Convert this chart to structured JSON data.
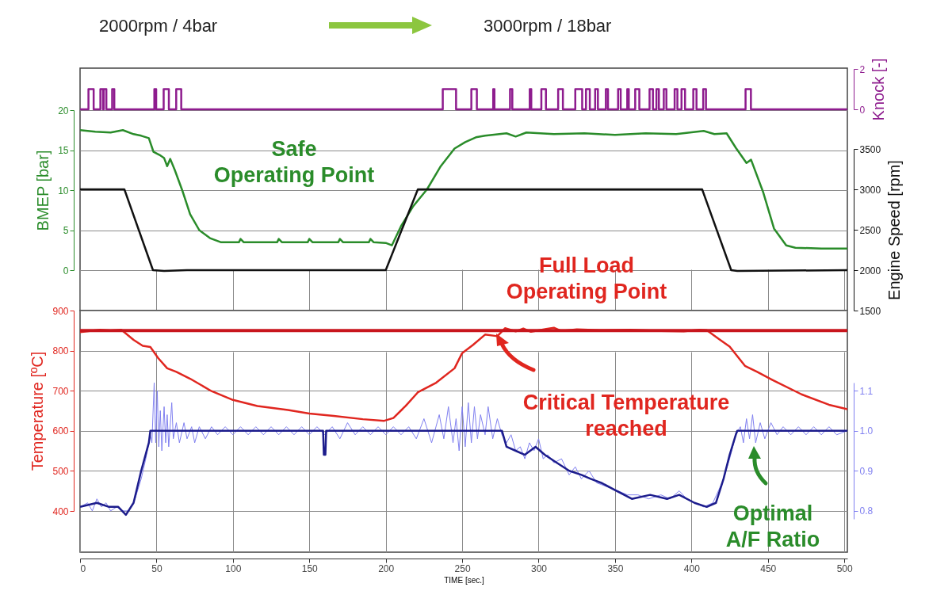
{
  "chart_data": [
    {
      "type": "line",
      "ylabel": "BMEP [bar]",
      "y2label": "Engine Speed [rpm]",
      "y3label": "Knock [-]",
      "xlim": [
        0,
        502
      ],
      "xticks": [
        0,
        50,
        100,
        150,
        200,
        250,
        300,
        350,
        400,
        450,
        500
      ],
      "tick_labels": "y",
      "ylim": [
        0,
        20
      ],
      "yticks": [
        0,
        5,
        10,
        15,
        20
      ],
      "y2lim": [
        1500,
        3500
      ],
      "y2ticks": [
        1500,
        2000,
        2500,
        3000,
        3500
      ],
      "y3lim": [
        0,
        2
      ],
      "y3ticks": [
        0,
        2
      ],
      "grid": true,
      "series": [
        {
          "type": "step",
          "axis": "y3",
          "color": "#8e1c8e",
          "x": [
            0,
            5.5,
            8.9,
            13.3,
            15,
            15.5,
            17.2,
            21,
            22.4,
            48.6,
            49.8,
            54.7,
            58.1,
            62.9,
            66.2,
            237.3,
            246,
            256,
            259.6,
            270.3,
            271.1,
            281.3,
            282.8,
            294.2,
            295.2,
            301.8,
            304.8,
            312.8,
            315.9,
            324,
            328.5,
            331,
            333.5,
            337,
            338.8,
            344,
            345.4,
            352,
            353.7,
            358,
            359,
            363.2,
            365.9,
            372.6,
            374.8,
            377.1,
            378.7,
            381.9,
            383.6,
            389,
            390.8,
            393.5,
            395.8,
            401.2,
            403.3,
            407.7,
            409.5,
            435.4,
            438.9,
            502
          ],
          "values": [
            0,
            1,
            0,
            1,
            0,
            1,
            0,
            1,
            0,
            1,
            0,
            1,
            0,
            1,
            0,
            1,
            0,
            1,
            0,
            1,
            0,
            1,
            0,
            1,
            0,
            1,
            0,
            1,
            0,
            1,
            0,
            1,
            0,
            1,
            0,
            1,
            0,
            1,
            0,
            1,
            0,
            1,
            0,
            1,
            0,
            1,
            0,
            1,
            0,
            1,
            0,
            1,
            0,
            1,
            0,
            1,
            0,
            1,
            0,
            0
          ]
        },
        {
          "color": "#2a8c2a",
          "x": [
            0,
            10,
            20,
            28,
            35,
            40,
            45,
            48,
            52,
            55,
            57,
            59,
            62,
            67,
            72,
            78,
            85,
            92,
            104,
            105,
            107,
            129,
            130,
            132,
            149,
            150,
            152,
            169,
            170,
            172,
            189,
            190,
            192,
            200,
            204,
            210,
            218,
            227,
            236,
            245,
            252,
            259,
            265,
            279,
            285,
            292,
            310,
            330,
            350,
            370,
            390,
            408,
            415,
            423,
            429,
            436,
            439,
            447,
            454,
            462,
            468,
            485,
            502
          ],
          "values": [
            17.5,
            17.3,
            17.2,
            17.5,
            17.0,
            16.8,
            16.5,
            14.8,
            14.4,
            14.0,
            13.0,
            13.9,
            12.5,
            9.9,
            7.0,
            5.0,
            4.0,
            3.5,
            3.5,
            3.9,
            3.5,
            3.5,
            3.9,
            3.5,
            3.5,
            3.9,
            3.5,
            3.5,
            3.9,
            3.5,
            3.5,
            3.9,
            3.5,
            3.4,
            3.1,
            5.5,
            8.0,
            10.1,
            13.0,
            15.2,
            16.0,
            16.6,
            16.8,
            17.1,
            16.7,
            17.2,
            17.0,
            17.1,
            16.9,
            17.1,
            17.0,
            17.4,
            17.0,
            17.1,
            15.3,
            13.4,
            13.8,
            9.7,
            5.2,
            3.1,
            2.8,
            2.7,
            2.7
          ]
        },
        {
          "axis": "y2",
          "color": "#111111",
          "x": [
            0,
            29,
            47.7,
            55,
            70,
            200,
            221,
            300,
            407,
            426,
            430,
            502
          ],
          "values": [
            3000,
            3000,
            2000,
            1990,
            2000,
            2000,
            3000,
            3000,
            3000,
            2000,
            1990,
            2000
          ]
        }
      ],
      "annotations": [
        "2000rpm / 4bar",
        "3000rpm / 18bar",
        "Safe\nOperating Point",
        "Full Load\nOperating Point"
      ]
    },
    {
      "type": "line",
      "xlabel": "TIME [sec.]",
      "ylabel": "Temperature [ºC]",
      "xlim": [
        0,
        502
      ],
      "xticks": [
        0,
        50,
        100,
        150,
        200,
        250,
        300,
        350,
        400,
        450,
        500
      ],
      "ylim": [
        400,
        900
      ],
      "yticks": [
        400,
        500,
        600,
        700,
        800,
        900
      ],
      "y2lim": [
        0.78,
        1.12
      ],
      "y2ticks": [
        0.8,
        0.9,
        {
          "value": 1,
          "label": "1.0"
        },
        1.1
      ],
      "grid": true,
      "ref_lines": [
        {
          "axis": "y",
          "value": 850,
          "color": "#c8161d"
        }
      ],
      "series": [
        {
          "color": "#e0261f",
          "x": [
            0,
            13,
            20,
            27,
            35,
            41,
            46,
            51,
            57,
            63,
            72,
            86,
            100,
            116,
            136,
            150,
            166,
            185,
            199,
            205,
            213,
            221,
            233,
            245,
            250,
            257,
            265,
            273,
            278,
            285,
            290,
            295,
            305,
            310,
            315,
            325,
            340,
            360,
            380,
            395,
            405,
            410,
            418,
            425,
            435,
            443,
            453,
            472,
            490,
            502
          ],
          "values": [
            846,
            852,
            850,
            852,
            827,
            812,
            809,
            782,
            756,
            747,
            730,
            699,
            677,
            662,
            652,
            643,
            637,
            629,
            625,
            632,
            662,
            696,
            720,
            756,
            794,
            814,
            840,
            836,
            856,
            848,
            855,
            847,
            854,
            857,
            849,
            853,
            851,
            852,
            849,
            848,
            852,
            851,
            829,
            810,
            762,
            747,
            727,
            691,
            665,
            654
          ]
        },
        {
          "axis": "y2",
          "color": "#8080f0",
          "x": [
            0,
            5,
            8,
            11,
            14,
            17,
            20,
            24,
            28,
            32,
            36,
            40,
            43,
            46,
            47,
            48.5,
            49.5,
            50.5,
            51.5,
            52.5,
            53.5,
            55,
            56,
            57,
            58,
            60,
            61,
            63,
            65,
            68,
            70,
            73,
            75,
            78,
            82,
            86,
            90,
            95,
            100,
            105,
            110,
            115,
            120,
            125,
            130,
            135,
            140,
            145,
            150,
            155,
            160,
            165,
            170,
            175,
            180,
            185,
            190,
            195,
            200,
            205,
            210,
            215,
            220,
            225,
            230,
            235,
            238,
            241,
            244,
            246,
            248,
            250,
            252,
            254,
            256,
            258,
            260,
            262,
            265,
            267,
            270,
            273,
            276,
            279,
            282,
            285,
            288,
            291,
            294,
            297,
            300,
            303,
            306,
            310,
            315,
            320,
            324,
            328,
            333,
            338,
            345,
            352,
            358,
            365,
            372,
            380,
            386,
            392,
            397,
            402,
            408,
            414,
            420,
            425,
            429,
            432,
            434,
            436,
            438,
            440,
            442,
            445,
            448,
            452,
            456,
            460,
            465,
            470,
            475,
            480,
            485,
            490,
            495,
            502
          ],
          "values": [
            0.81,
            0.82,
            0.8,
            0.83,
            0.81,
            0.82,
            0.8,
            0.81,
            0.8,
            0.8,
            0.83,
            0.88,
            0.93,
            0.99,
            0.97,
            1.12,
            0.97,
            1.1,
            0.96,
            1.05,
            0.95,
            1.06,
            0.97,
            1.04,
            0.96,
            1.07,
            0.98,
            1.02,
            0.97,
            1.02,
            0.98,
            1.01,
            0.97,
            1.01,
            0.98,
            1.01,
            0.99,
            1.01,
            0.99,
            1.01,
            0.99,
            1.01,
            0.99,
            1.01,
            0.99,
            1.01,
            0.99,
            1.01,
            0.99,
            1.01,
            0.99,
            1.01,
            0.98,
            1.02,
            0.99,
            1.01,
            0.99,
            1.01,
            0.99,
            1.01,
            0.99,
            1.01,
            0.98,
            1.03,
            0.97,
            1.04,
            0.98,
            1.06,
            0.97,
            1.03,
            0.95,
            1.06,
            0.96,
            1.07,
            0.97,
            1.06,
            0.98,
            1.04,
            0.99,
            1.06,
            0.98,
            1.03,
            0.99,
            0.97,
            0.99,
            0.95,
            0.96,
            0.93,
            0.97,
            0.95,
            0.98,
            0.93,
            0.94,
            0.92,
            0.93,
            0.89,
            0.91,
            0.88,
            0.9,
            0.87,
            0.86,
            0.85,
            0.84,
            0.84,
            0.83,
            0.84,
            0.83,
            0.85,
            0.83,
            0.82,
            0.81,
            0.82,
            0.87,
            0.93,
            0.99,
            1.01,
            0.97,
            1.03,
            0.98,
            1.04,
            0.97,
            1.02,
            0.98,
            1.02,
            0.99,
            1.01,
            0.99,
            1.01,
            0.99,
            1.01,
            0.99,
            1.01,
            0.99,
            1.0
          ]
        },
        {
          "axis": "y2",
          "color": "#1c1c8c",
          "x": [
            0,
            11,
            19,
            25,
            30,
            35,
            40,
            45,
            46,
            159,
            159.5,
            160.5,
            161,
            276,
            279,
            285,
            291,
            298,
            304,
            312,
            320,
            328,
            334,
            341,
            351,
            361,
            373,
            384,
            392,
            402,
            410,
            416,
            421,
            425,
            429,
            430,
            502
          ],
          "values": [
            0.81,
            0.82,
            0.81,
            0.81,
            0.79,
            0.82,
            0.9,
            0.97,
            1.0,
            1.0,
            0.94,
            0.94,
            1.0,
            1.0,
            0.96,
            0.95,
            0.94,
            0.96,
            0.94,
            0.92,
            0.9,
            0.89,
            0.88,
            0.87,
            0.85,
            0.83,
            0.84,
            0.83,
            0.84,
            0.82,
            0.81,
            0.82,
            0.88,
            0.94,
            0.99,
            1.0,
            1.0
          ]
        }
      ],
      "annotations": [
        "Critical Temperature\nreached",
        "Optimal\nA/F Ratio"
      ]
    }
  ]
}
